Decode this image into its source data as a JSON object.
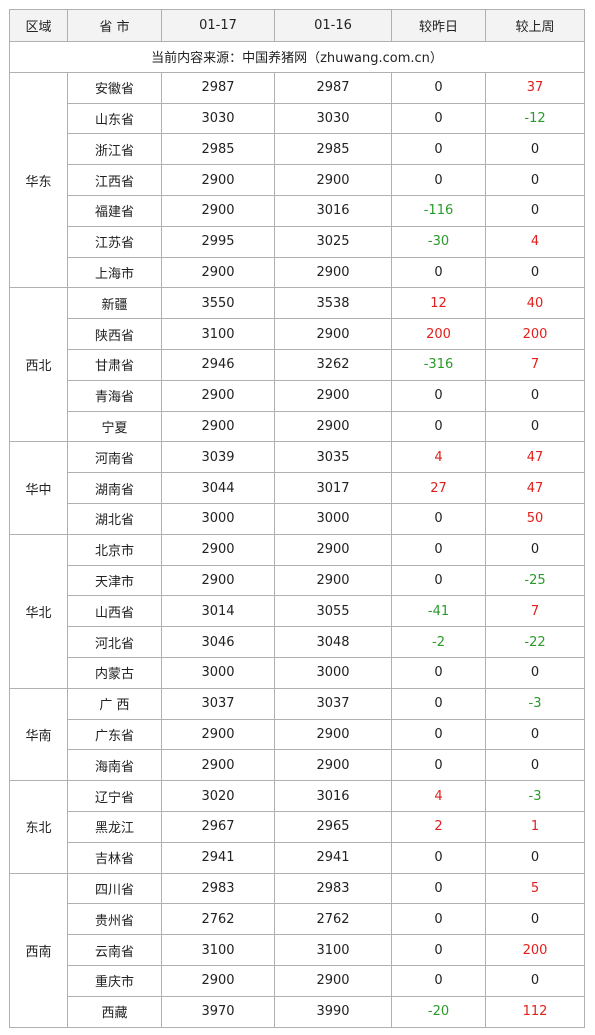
{
  "headers": [
    "区域",
    "省 市",
    "01-17",
    "01-16",
    "较昨日",
    "较上周"
  ],
  "source_note": "当前内容来源：中国养猪网（zhuwang.com.cn）",
  "regions": [
    {
      "name": "华东",
      "rows": [
        {
          "province": "安徽省",
          "d0117": "2987",
          "d0116": "2987",
          "vs_yesterday": "0",
          "vs_last_week": "37"
        },
        {
          "province": "山东省",
          "d0117": "3030",
          "d0116": "3030",
          "vs_yesterday": "0",
          "vs_last_week": "-12"
        },
        {
          "province": "浙江省",
          "d0117": "2985",
          "d0116": "2985",
          "vs_yesterday": "0",
          "vs_last_week": "0"
        },
        {
          "province": "江西省",
          "d0117": "2900",
          "d0116": "2900",
          "vs_yesterday": "0",
          "vs_last_week": "0"
        },
        {
          "province": "福建省",
          "d0117": "2900",
          "d0116": "3016",
          "vs_yesterday": "-116",
          "vs_last_week": "0"
        },
        {
          "province": "江苏省",
          "d0117": "2995",
          "d0116": "3025",
          "vs_yesterday": "-30",
          "vs_last_week": "4"
        },
        {
          "province": "上海市",
          "d0117": "2900",
          "d0116": "2900",
          "vs_yesterday": "0",
          "vs_last_week": "0"
        }
      ]
    },
    {
      "name": "西北",
      "rows": [
        {
          "province": "新疆",
          "d0117": "3550",
          "d0116": "3538",
          "vs_yesterday": "12",
          "vs_last_week": "40"
        },
        {
          "province": "陕西省",
          "d0117": "3100",
          "d0116": "2900",
          "vs_yesterday": "200",
          "vs_last_week": "200"
        },
        {
          "province": "甘肃省",
          "d0117": "2946",
          "d0116": "3262",
          "vs_yesterday": "-316",
          "vs_last_week": "7"
        },
        {
          "province": "青海省",
          "d0117": "2900",
          "d0116": "2900",
          "vs_yesterday": "0",
          "vs_last_week": "0"
        },
        {
          "province": "宁夏",
          "d0117": "2900",
          "d0116": "2900",
          "vs_yesterday": "0",
          "vs_last_week": "0"
        }
      ]
    },
    {
      "name": "华中",
      "rows": [
        {
          "province": "河南省",
          "d0117": "3039",
          "d0116": "3035",
          "vs_yesterday": "4",
          "vs_last_week": "47"
        },
        {
          "province": "湖南省",
          "d0117": "3044",
          "d0116": "3017",
          "vs_yesterday": "27",
          "vs_last_week": "47"
        },
        {
          "province": "湖北省",
          "d0117": "3000",
          "d0116": "3000",
          "vs_yesterday": "0",
          "vs_last_week": "50"
        }
      ]
    },
    {
      "name": "华北",
      "rows": [
        {
          "province": "北京市",
          "d0117": "2900",
          "d0116": "2900",
          "vs_yesterday": "0",
          "vs_last_week": "0"
        },
        {
          "province": "天津市",
          "d0117": "2900",
          "d0116": "2900",
          "vs_yesterday": "0",
          "vs_last_week": "-25"
        },
        {
          "province": "山西省",
          "d0117": "3014",
          "d0116": "3055",
          "vs_yesterday": "-41",
          "vs_last_week": "7"
        },
        {
          "province": "河北省",
          "d0117": "3046",
          "d0116": "3048",
          "vs_yesterday": "-2",
          "vs_last_week": "-22"
        },
        {
          "province": "内蒙古",
          "d0117": "3000",
          "d0116": "3000",
          "vs_yesterday": "0",
          "vs_last_week": "0"
        }
      ]
    },
    {
      "name": "华南",
      "rows": [
        {
          "province": "广 西",
          "d0117": "3037",
          "d0116": "3037",
          "vs_yesterday": "0",
          "vs_last_week": "-3"
        },
        {
          "province": "广东省",
          "d0117": "2900",
          "d0116": "2900",
          "vs_yesterday": "0",
          "vs_last_week": "0"
        },
        {
          "province": "海南省",
          "d0117": "2900",
          "d0116": "2900",
          "vs_yesterday": "0",
          "vs_last_week": "0"
        }
      ]
    },
    {
      "name": "东北",
      "rows": [
        {
          "province": "辽宁省",
          "d0117": "3020",
          "d0116": "3016",
          "vs_yesterday": "4",
          "vs_last_week": "-3"
        },
        {
          "province": "黑龙江",
          "d0117": "2967",
          "d0116": "2965",
          "vs_yesterday": "2",
          "vs_last_week": "1"
        },
        {
          "province": "吉林省",
          "d0117": "2941",
          "d0116": "2941",
          "vs_yesterday": "0",
          "vs_last_week": "0"
        }
      ]
    },
    {
      "name": "西南",
      "rows": [
        {
          "province": "四川省",
          "d0117": "2983",
          "d0116": "2983",
          "vs_yesterday": "0",
          "vs_last_week": "5"
        },
        {
          "province": "贵州省",
          "d0117": "2762",
          "d0116": "2762",
          "vs_yesterday": "0",
          "vs_last_week": "0"
        },
        {
          "province": "云南省",
          "d0117": "3100",
          "d0116": "3100",
          "vs_yesterday": "0",
          "vs_last_week": "200"
        },
        {
          "province": "重庆市",
          "d0117": "2900",
          "d0116": "2900",
          "vs_yesterday": "0",
          "vs_last_week": "0"
        },
        {
          "province": "西藏",
          "d0117": "3970",
          "d0116": "3990",
          "vs_yesterday": "-20",
          "vs_last_week": "112"
        }
      ]
    }
  ],
  "colors": {
    "increase": "#e0201c",
    "decrease": "#2a9a2a",
    "neutral": "#222222",
    "border": "#b0b0b0",
    "header_bg": "#f3f3f3"
  }
}
